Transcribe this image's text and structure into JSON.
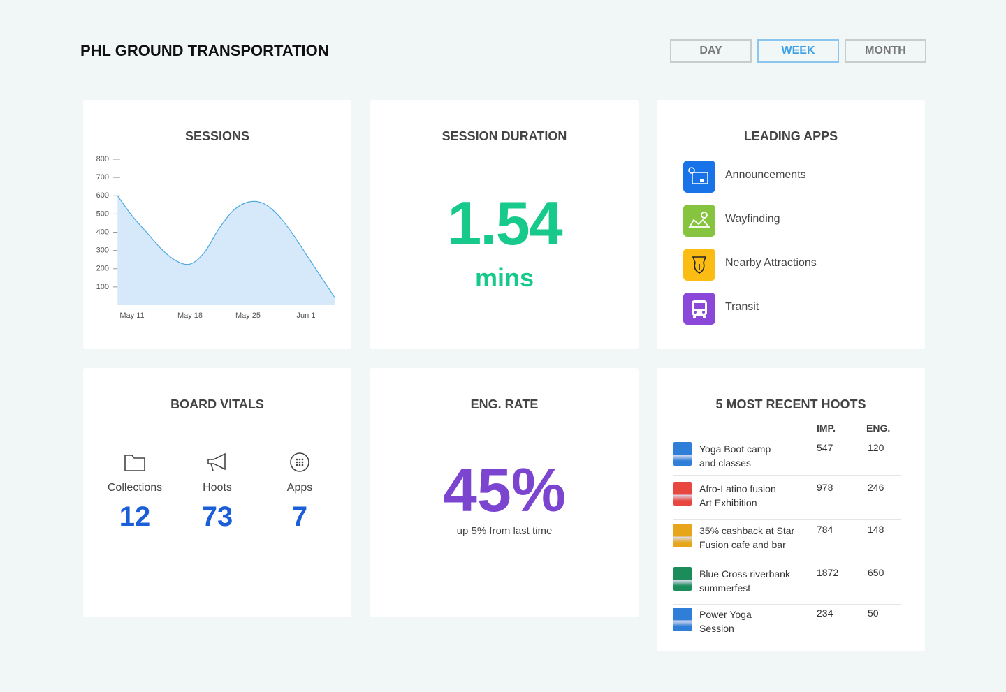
{
  "header": {
    "title": "PHL GROUND TRANSPORTATION",
    "filters": [
      {
        "label": "DAY"
      },
      {
        "label": "WEEK",
        "selected": true
      },
      {
        "label": "MONTH"
      }
    ]
  },
  "sessions": {
    "type": "area",
    "title": "SESSIONS",
    "categories": [
      null,
      "May 11",
      null,
      null,
      null,
      "May 18",
      null,
      null,
      null,
      "May 25",
      null,
      null,
      null,
      "Jun 1",
      null,
      null
    ],
    "values": [
      600,
      490,
      400,
      310,
      245,
      225,
      290,
      420,
      520,
      565,
      560,
      500,
      400,
      280,
      160,
      40
    ],
    "ylim": [
      0,
      800
    ],
    "yticks": [
      100,
      200,
      300,
      400,
      500,
      600,
      700,
      800
    ],
    "color": "#4aa8e0",
    "fill": "#d6e9fb"
  },
  "session_duration": {
    "title": "SESSION DURATION",
    "value": "1.54",
    "unit": "mins"
  },
  "leading_apps": {
    "title": "LEADING APPS",
    "apps": [
      "Announcements",
      "Wayfinding",
      "Nearby Attractions",
      "Transit"
    ]
  },
  "board_vitals": {
    "title": "BOARD VITALS",
    "items": [
      {
        "label": "Collections",
        "value": 12
      },
      {
        "label": "Hoots",
        "value": 73
      },
      {
        "label": "Apps",
        "value": 7
      }
    ]
  },
  "eng_rate": {
    "title": "ENG. RATE",
    "value": "45%",
    "note": "up 5% from last time"
  },
  "hoots": {
    "title": "5 MOST RECENT HOOTS",
    "columns": [
      "IMP.",
      "ENG."
    ],
    "rows": [
      {
        "title_lines": [
          "Yoga Boot camp",
          "and classes"
        ],
        "imp": 547,
        "eng": 120
      },
      {
        "title_lines": [
          "Afro-Latino fusion",
          "Art Exhibition"
        ],
        "imp": 978,
        "eng": 246
      },
      {
        "title_lines": [
          "35% cashback at Star",
          "Fusion cafe and bar"
        ],
        "imp": 784,
        "eng": 148
      },
      {
        "title_lines": [
          "Blue Cross riverbank",
          "summerfest"
        ],
        "imp": 1872,
        "eng": 650
      },
      {
        "title_lines": [
          "Power Yoga",
          "Session"
        ],
        "imp": 234,
        "eng": 50
      }
    ]
  }
}
